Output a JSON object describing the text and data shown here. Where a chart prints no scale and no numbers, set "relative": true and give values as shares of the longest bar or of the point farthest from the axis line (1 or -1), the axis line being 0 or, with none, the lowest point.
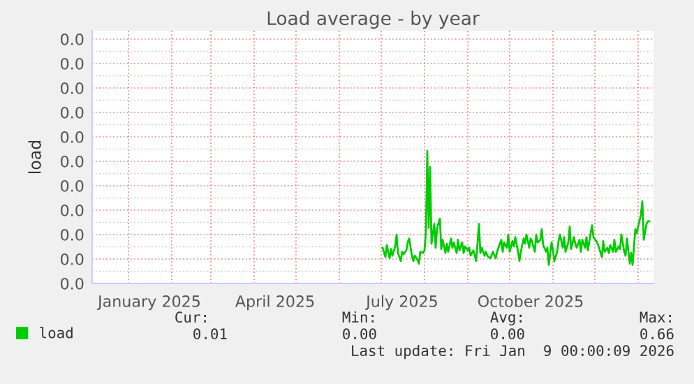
{
  "chart_data": {
    "type": "line",
    "title": "Load average - by year",
    "ylabel": "load",
    "relative": true,
    "xlim": [
      "2024-12-06",
      "2026-01-12"
    ],
    "xticks": [
      {
        "value": "2025-01-16",
        "label": "January 2025"
      },
      {
        "value": "2025-04-16",
        "label": "April 2025"
      },
      {
        "value": "2025-07-16",
        "label": "July 2025"
      },
      {
        "value": "2025-10-16",
        "label": "October 2025"
      },
      {
        "value": "2025-01-01",
        "label": null
      },
      {
        "value": "2025-02-01",
        "label": null
      },
      {
        "value": "2025-03-01",
        "label": null
      },
      {
        "value": "2025-04-01",
        "label": null
      },
      {
        "value": "2025-05-01",
        "label": null
      },
      {
        "value": "2025-06-01",
        "label": null
      },
      {
        "value": "2025-07-01",
        "label": null
      },
      {
        "value": "2025-08-01",
        "label": null
      },
      {
        "value": "2025-09-01",
        "label": null
      },
      {
        "value": "2025-10-01",
        "label": null
      },
      {
        "value": "2025-11-01",
        "label": null
      },
      {
        "value": "2025-12-01",
        "label": null
      },
      {
        "value": "2026-01-01",
        "label": null
      }
    ],
    "grid": true,
    "legend": "bottom left",
    "series": [
      {
        "name": "load",
        "color": "#00cc00",
        "x": [
          "2025-07-02",
          "2025-07-04",
          "2025-07-05",
          "2025-07-07",
          "2025-07-08",
          "2025-07-09",
          "2025-07-11",
          "2025-07-12",
          "2025-07-13",
          "2025-07-15",
          "2025-07-16",
          "2025-07-17",
          "2025-07-19",
          "2025-07-20",
          "2025-07-21",
          "2025-07-23",
          "2025-07-24",
          "2025-07-25",
          "2025-07-27",
          "2025-07-28",
          "2025-07-29",
          "2025-07-31",
          "2025-08-01",
          "2025-08-02",
          "2025-08-03",
          "2025-08-04",
          "2025-08-05",
          "2025-08-06",
          "2025-08-07",
          "2025-08-08",
          "2025-08-09",
          "2025-08-10",
          "2025-08-12",
          "2025-08-13",
          "2025-08-14",
          "2025-08-16",
          "2025-08-17",
          "2025-08-18",
          "2025-08-20",
          "2025-08-21",
          "2025-08-22",
          "2025-08-24",
          "2025-08-25",
          "2025-08-26",
          "2025-08-28",
          "2025-08-29",
          "2025-08-30",
          "2025-09-01",
          "2025-09-02",
          "2025-09-03",
          "2025-09-05",
          "2025-09-06",
          "2025-09-07",
          "2025-09-09",
          "2025-09-10",
          "2025-09-11",
          "2025-09-13",
          "2025-09-14",
          "2025-09-15",
          "2025-09-17",
          "2025-09-18",
          "2025-09-19",
          "2025-09-21",
          "2025-09-22",
          "2025-09-23",
          "2025-09-25",
          "2025-09-26",
          "2025-09-27",
          "2025-09-29",
          "2025-09-30",
          "2025-10-01",
          "2025-10-03",
          "2025-10-04",
          "2025-10-05",
          "2025-10-07",
          "2025-10-08",
          "2025-10-09",
          "2025-10-11",
          "2025-10-12",
          "2025-10-13",
          "2025-10-15",
          "2025-10-16",
          "2025-10-17",
          "2025-10-19",
          "2025-10-20",
          "2025-10-21",
          "2025-10-23",
          "2025-10-24",
          "2025-10-25",
          "2025-10-27",
          "2025-10-28",
          "2025-10-29",
          "2025-10-31",
          "2025-11-01",
          "2025-11-02",
          "2025-11-04",
          "2025-11-05",
          "2025-11-06",
          "2025-11-08",
          "2025-11-09",
          "2025-11-10",
          "2025-11-12",
          "2025-11-13",
          "2025-11-14",
          "2025-11-16",
          "2025-11-17",
          "2025-11-18",
          "2025-11-20",
          "2025-11-21",
          "2025-11-22",
          "2025-11-24",
          "2025-11-25",
          "2025-11-26",
          "2025-11-28",
          "2025-11-29",
          "2025-11-30",
          "2025-12-02",
          "2025-12-03",
          "2025-12-04",
          "2025-12-06",
          "2025-12-07",
          "2025-12-08",
          "2025-12-10",
          "2025-12-11",
          "2025-12-12",
          "2025-12-14",
          "2025-12-15",
          "2025-12-16",
          "2025-12-18",
          "2025-12-19",
          "2025-12-20",
          "2025-12-22",
          "2025-12-23",
          "2025-12-24",
          "2025-12-26",
          "2025-12-27",
          "2025-12-28",
          "2025-12-30",
          "2025-12-31",
          "2026-01-01",
          "2026-01-03",
          "2026-01-04",
          "2026-01-05",
          "2026-01-07",
          "2026-01-08",
          "2026-01-09"
        ],
        "values": [
          0.27,
          0.2,
          0.29,
          0.19,
          0.26,
          0.21,
          0.28,
          0.37,
          0.23,
          0.17,
          0.24,
          0.22,
          0.25,
          0.31,
          0.34,
          0.21,
          0.17,
          0.21,
          0.18,
          0.15,
          0.24,
          0.23,
          0.25,
          0.38,
          1,
          0.42,
          0.88,
          0.3,
          0.38,
          0.45,
          0.27,
          0.42,
          0.49,
          0.26,
          0.33,
          0.23,
          0.3,
          0.24,
          0.34,
          0.27,
          0.31,
          0.23,
          0.33,
          0.25,
          0.31,
          0.23,
          0.28,
          0.25,
          0.27,
          0.21,
          0.25,
          0.21,
          0.17,
          0.45,
          0.23,
          0.27,
          0.21,
          0.24,
          0.21,
          0.19,
          0.21,
          0.24,
          0.19,
          0.24,
          0.27,
          0.33,
          0.24,
          0.31,
          0.27,
          0.37,
          0.24,
          0.32,
          0.28,
          0.35,
          0.24,
          0.17,
          0.24,
          0.34,
          0.3,
          0.37,
          0.27,
          0.34,
          0.32,
          0.24,
          0.37,
          0.31,
          0.33,
          0.41,
          0.29,
          0.24,
          0.27,
          0.14,
          0.31,
          0.25,
          0.17,
          0.24,
          0.32,
          0.37,
          0.27,
          0.35,
          0.24,
          0.31,
          0.43,
          0.26,
          0.35,
          0.3,
          0.27,
          0.33,
          0.24,
          0.33,
          0.27,
          0.35,
          0.25,
          0.38,
          0.44,
          0.35,
          0.32,
          0.3,
          0.27,
          0.2,
          0.32,
          0.24,
          0.27,
          0.23,
          0.29,
          0.24,
          0.33,
          0.24,
          0.28,
          0.26,
          0.37,
          0.24,
          0.21,
          0.34,
          0.15,
          0.23,
          0.14,
          0.41,
          0.38,
          0.43,
          0.52,
          0.62,
          0.33,
          0.45,
          0.47,
          0.47
        ]
      }
    ],
    "annotations": [
      "0.0",
      "0.0",
      "0.0",
      "0.0",
      "0.0",
      "0.0",
      "0.0",
      "0.0",
      "0.0",
      "0.0",
      "0.0",
      "Cur:",
      "Min:",
      "Avg:",
      "Max:",
      "0.01",
      "0.00",
      "0.00",
      "0.66",
      "Last update: Fri Jan  9 00:00:09 2026"
    ]
  }
}
